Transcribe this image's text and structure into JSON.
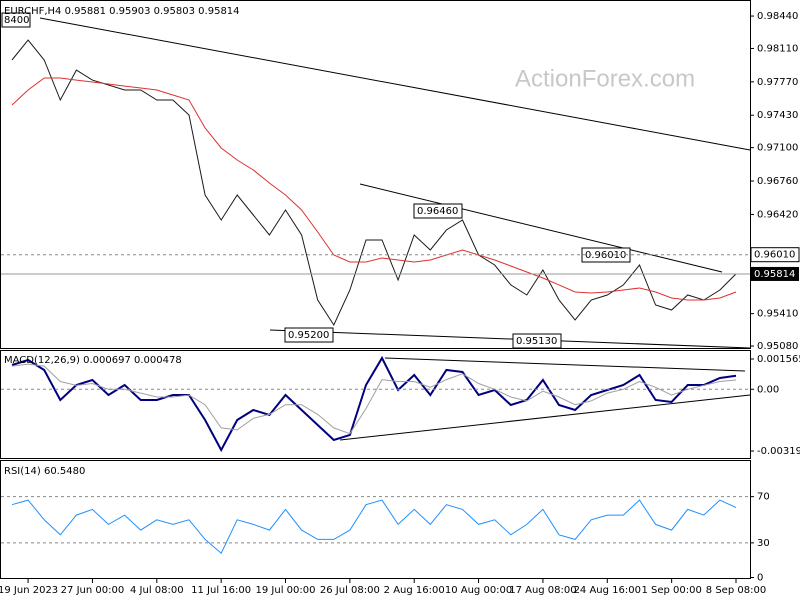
{
  "chart_data": [
    {
      "type": "line",
      "title": "EURCHF,H4  0.95881 0.95903 0.95803 0.95814",
      "watermark": "ActionForex.com",
      "categories": [
        null,
        "19 Jun 2023",
        null,
        null,
        null,
        "27 Jun 00:00",
        null,
        null,
        null,
        "4 Jul 08:00",
        null,
        null,
        null,
        "11 Jul 16:00",
        null,
        null,
        null,
        "19 Jul 00:00",
        null,
        null,
        null,
        "26 Jul 08:00",
        null,
        null,
        null,
        "2 Aug 16:00",
        null,
        null,
        null,
        "10 Aug 00:00",
        null,
        null,
        null,
        "17 Aug 08:00",
        null,
        null,
        null,
        "24 Aug 16:00",
        null,
        null,
        null,
        "1 Sep 00:00",
        null,
        null,
        null,
        "8 Sep 08:00"
      ],
      "series": [
        {
          "color": "#1a1a1a",
          "values": [
            0.97992,
            0.98196,
            0.97992,
            0.97585,
            0.9789,
            0.97788,
            0.97738,
            0.97687,
            0.97687,
            0.97585,
            0.97585,
            0.97432,
            0.96618,
            0.96363,
            0.96618,
            0.96414,
            0.96211,
            0.96465,
            0.96211,
            0.95549,
            0.95294,
            0.95651,
            0.9616,
            0.9616,
            0.95752,
            0.96211,
            0.96058,
            0.96261,
            0.96363,
            0.96007,
            0.95905,
            0.95702,
            0.956,
            0.95854,
            0.95549,
            0.95345,
            0.95549,
            0.956,
            0.95702,
            0.95905,
            0.95498,
            0.95447,
            0.956,
            0.95549,
            0.95651,
            0.95814
          ]
        },
        {
          "color": "#e03030",
          "values": [
            0.97534,
            0.97687,
            0.97809,
            0.97809,
            0.97788,
            0.97768,
            0.97748,
            0.97727,
            0.97707,
            0.97687,
            0.97636,
            0.97585,
            0.973,
            0.97096,
            0.96974,
            0.96872,
            0.9674,
            0.96618,
            0.96465,
            0.96241,
            0.96007,
            0.95936,
            0.95936,
            0.95976,
            0.95956,
            0.95936,
            0.95956,
            0.96007,
            0.96058,
            0.96007,
            0.95956,
            0.95895,
            0.95834,
            0.95773,
            0.95702,
            0.9563,
            0.9562,
            0.9563,
            0.95651,
            0.95671,
            0.9563,
            0.95569,
            0.95549,
            0.95549,
            0.95569,
            0.9563
          ]
        }
      ],
      "ylim": [
        0.9506,
        0.98583
      ],
      "yticks": [
        {
          "value": 0.9844,
          "label": "0.98440"
        },
        {
          "value": 0.9811,
          "label": "0.98110"
        },
        {
          "value": 0.9777,
          "label": "0.97770"
        },
        {
          "value": 0.9743,
          "label": "0.97430"
        },
        {
          "value": 0.971,
          "label": "0.97100"
        },
        {
          "value": 0.9676,
          "label": "0.96760"
        },
        {
          "value": 0.9642,
          "label": "0.96420"
        },
        {
          "value": 0.9541,
          "label": "0.95410"
        },
        {
          "value": 0.9508,
          "label": "0.95080"
        }
      ],
      "hlines": [
        {
          "value": 0.9601,
          "label": "0.96010"
        }
      ],
      "current_price": {
        "value": 0.95814,
        "label": "0.95814"
      },
      "annotations": [
        "8400",
        "0.96460",
        "0.96010",
        "0.95200",
        "0.95130"
      ]
    },
    {
      "type": "line",
      "title": "MACD(12,26,9) 0.000697 0.000478",
      "series": [
        {
          "color": "#000080",
          "values": [
            0.001257,
            0.001515,
            0.000998,
            -0.000553,
            0.000222,
            0.000481,
            -0.000295,
            0.000222,
            -0.000553,
            -0.000553,
            -0.000295,
            -0.000295,
            -0.001588,
            -0.003139,
            -0.001588,
            -0.00107,
            -0.001329,
            -0.000295,
            -0.00107,
            -0.001846,
            -0.002622,
            -0.002363,
            0.000222,
            0.001619,
            -3.6e-05,
            0.000739,
            -0.000295,
            0.000998,
            0.000895,
            -0.000295,
            -3.6e-05,
            -0.000812,
            -0.000553,
            0.000481,
            -0.000812,
            -0.00107,
            -0.000295,
            -3.6e-05,
            0.000222,
            0.000739,
            -0.000553,
            -0.000657,
            0.000222,
            0.000222,
            0.000584,
            0.000697
          ]
        },
        {
          "color": "#a0a0a0",
          "values": [
            0.0012,
            0.0013,
            0.0012,
            0.0004,
            0.0002,
            0.0003,
            0.0,
            0.0,
            -0.0002,
            -0.0004,
            -0.0004,
            -0.0003,
            -0.0008,
            -0.002,
            -0.0021,
            -0.0015,
            -0.0013,
            -0.0008,
            -0.0008,
            -0.0013,
            -0.002,
            -0.0023,
            -0.001,
            0.0005,
            0.0004,
            0.0004,
            0.0001,
            0.0005,
            0.0008,
            0.0003,
            0.0,
            -0.0004,
            -0.0006,
            -0.0001,
            -0.0004,
            -0.0008,
            -0.0006,
            -0.0002,
            0.0,
            0.0004,
            0.0001,
            -0.0003,
            0.0,
            0.0002,
            0.0004,
            0.000478
          ]
        }
      ],
      "ylim": [
        -0.003554,
        0.001979
      ],
      "yticks": [
        0.001565,
        {
          "value": 0,
          "label": "0.00"
        },
        -0.003192
      ],
      "hlines": [
        0
      ]
    },
    {
      "type": "line",
      "title": "RSI(14) 60.5480",
      "series": [
        {
          "color": "#1e90ff",
          "values": [
            63,
            67,
            50,
            37,
            54,
            59,
            46,
            54,
            41,
            50,
            46,
            50,
            33,
            21,
            50,
            46,
            41,
            59,
            41,
            33,
            33,
            41,
            63,
            67,
            46,
            59,
            46,
            63,
            59,
            46,
            50,
            37,
            46,
            59,
            37,
            33,
            50,
            54,
            54,
            67,
            46,
            41,
            59,
            54,
            67,
            60.548
          ]
        }
      ],
      "ylim": [
        0,
        100
      ],
      "yticks": [
        70,
        30,
        0
      ],
      "hlines": [
        70,
        30
      ]
    }
  ]
}
